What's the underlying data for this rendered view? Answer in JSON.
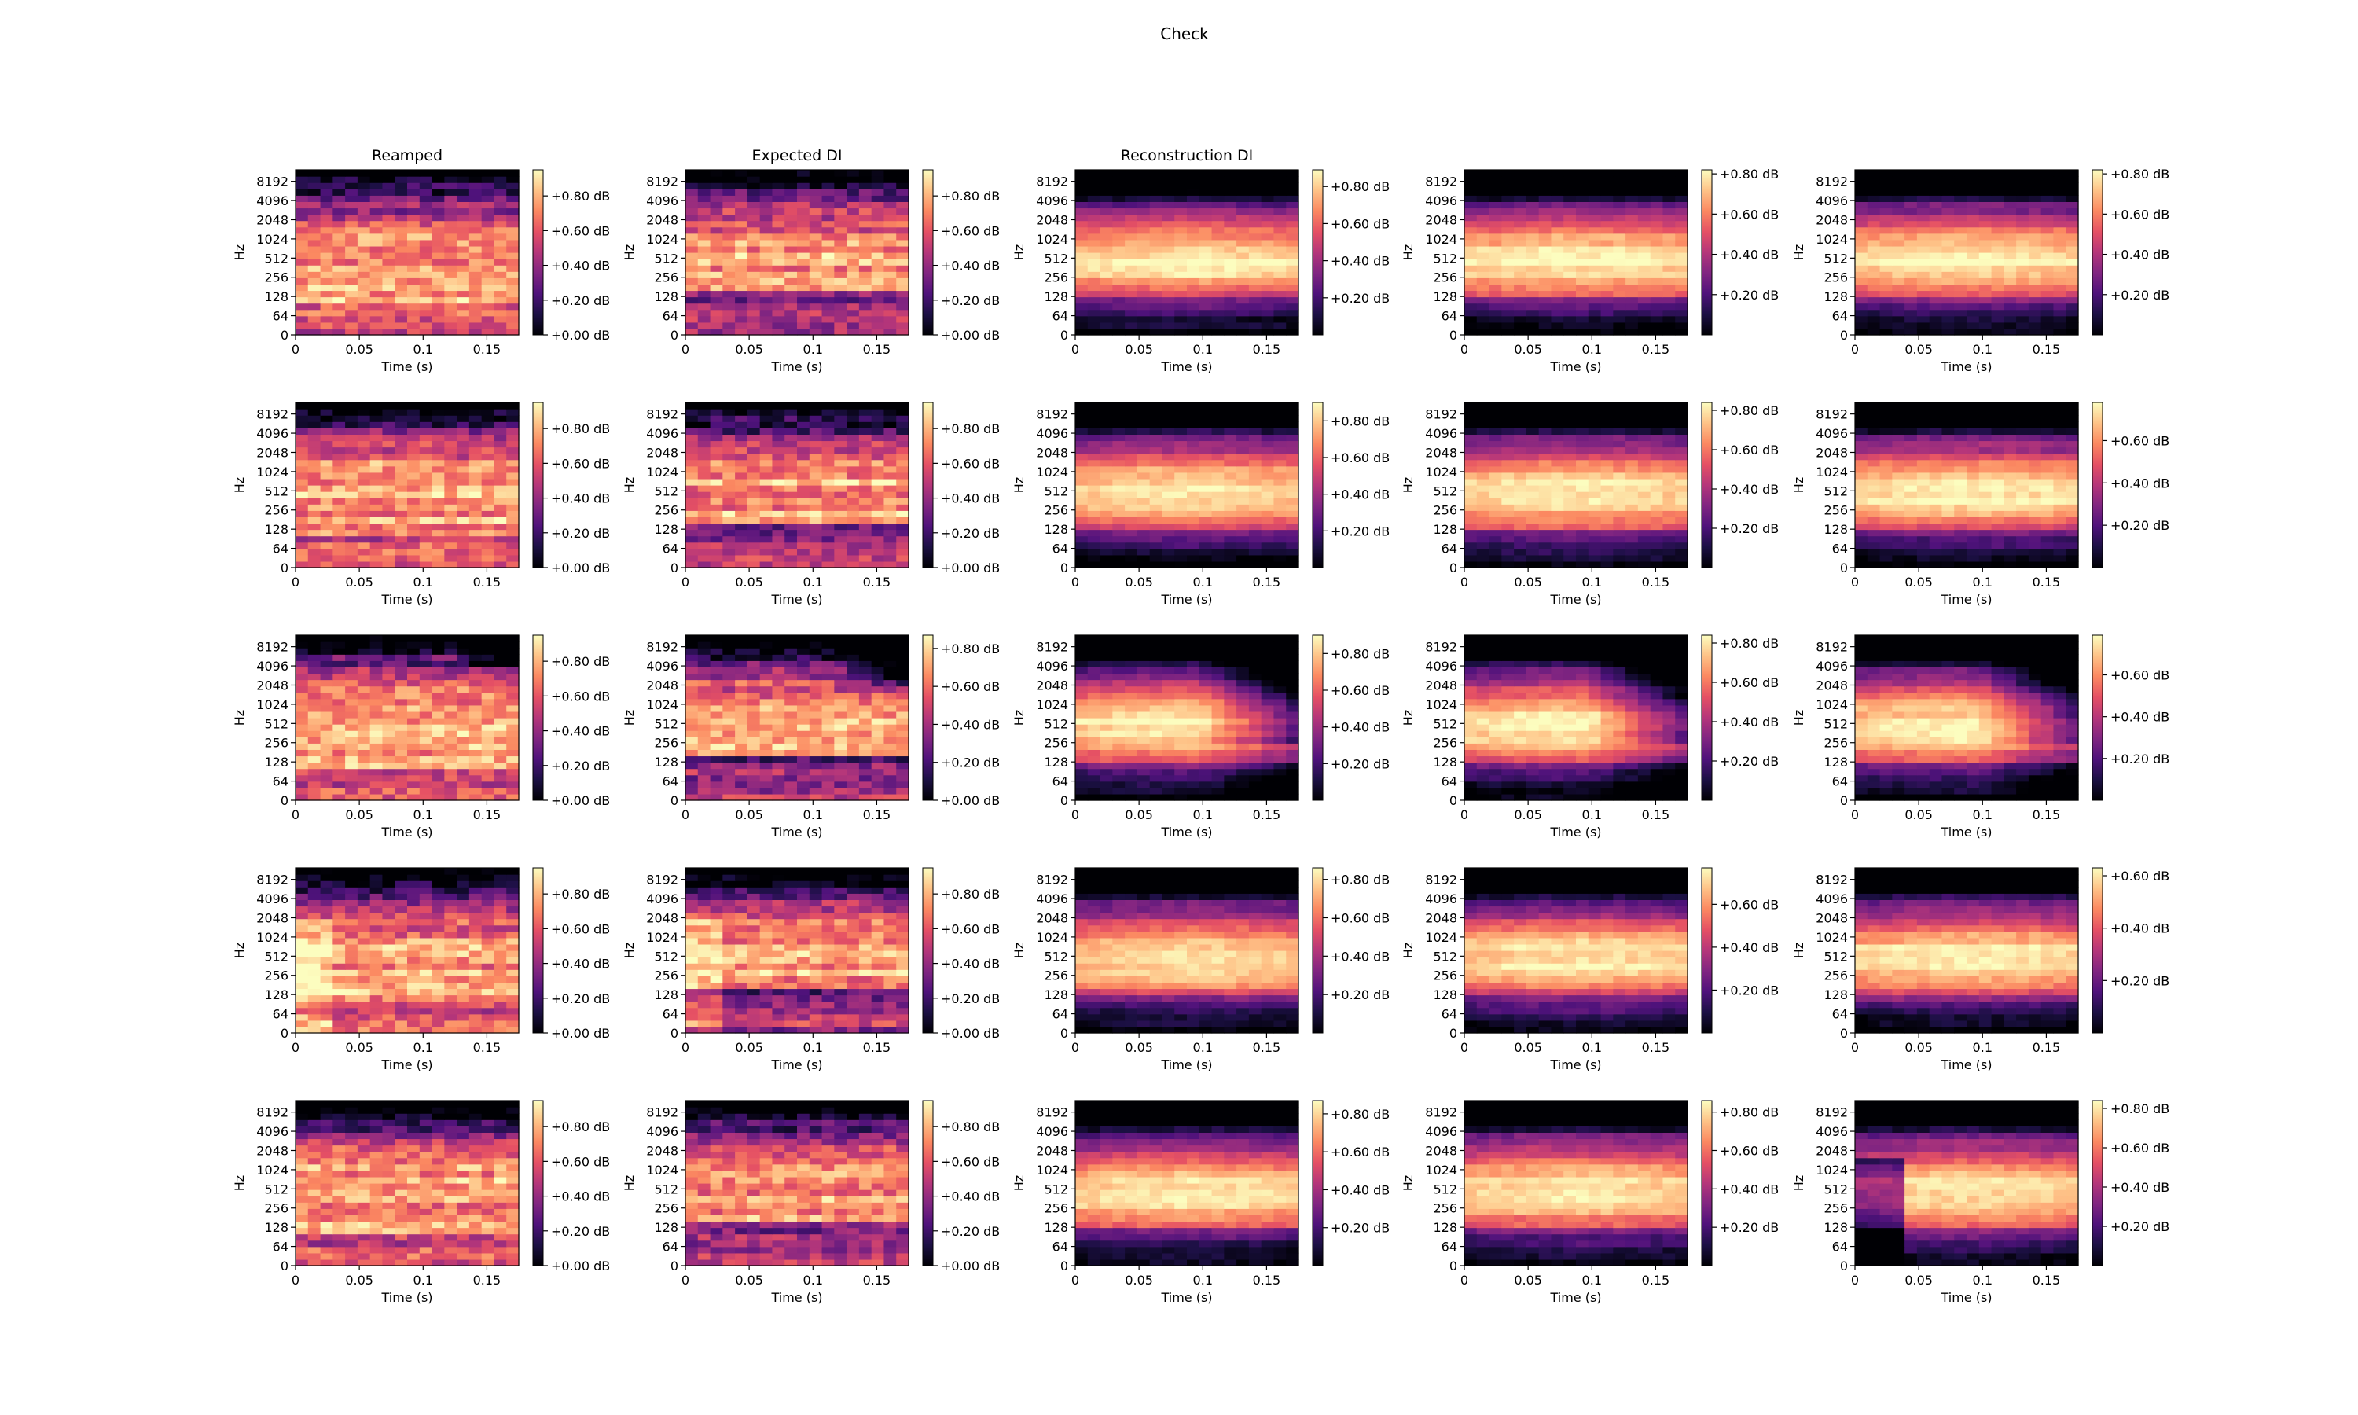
{
  "figure": {
    "suptitle": "Check",
    "column_titles": [
      "Reamped",
      "Expected DI",
      "Reconstruction DI",
      "",
      ""
    ]
  },
  "chart_data": {
    "type": "heatmap",
    "description_kind": "spectrogram grid",
    "grid": {
      "rows": 5,
      "cols": 5
    },
    "x": {
      "label": "Time (s)",
      "ticks": [
        0,
        0.05,
        0.1,
        0.15
      ],
      "tick_labels": [
        "0",
        "0.05",
        "0.1",
        "0.15"
      ],
      "range": [
        0,
        0.175
      ],
      "frames": 18
    },
    "y": {
      "label": "Hz",
      "scale": "log2",
      "ticks": [
        0,
        64,
        128,
        256,
        512,
        1024,
        2048,
        4096,
        8192
      ],
      "tick_labels": [
        "0",
        "64",
        "128",
        "256",
        "512",
        "1024",
        "2048",
        "4096",
        "8192"
      ],
      "bins": 26
    },
    "colormap": "magma",
    "colormap_stops": [
      "#000004",
      "#1c1044",
      "#4f127b",
      "#812581",
      "#b5367a",
      "#e55064",
      "#fb8861",
      "#fec287",
      "#fcfdbf"
    ],
    "colorbars": [
      [
        {
          "ticks": [
            0,
            0.2,
            0.4,
            0.6,
            0.8
          ],
          "vmax": 0.95,
          "labels": [
            "+0.00 dB",
            "+0.20 dB",
            "+0.40 dB",
            "+0.60 dB",
            "+0.80 dB"
          ]
        },
        {
          "ticks": [
            0,
            0.2,
            0.4,
            0.6,
            0.8
          ],
          "vmax": 0.95,
          "labels": [
            "+0.00 dB",
            "+0.20 dB",
            "+0.40 dB",
            "+0.60 dB",
            "+0.80 dB"
          ]
        },
        {
          "ticks": [
            0.2,
            0.4,
            0.6,
            0.8
          ],
          "vmax": 0.89,
          "labels": [
            "+0.20 dB",
            "+0.40 dB",
            "+0.60 dB",
            "+0.80 dB"
          ]
        },
        {
          "ticks": [
            0.2,
            0.4,
            0.6,
            0.8
          ],
          "vmax": 0.82,
          "labels": [
            "+0.20 dB",
            "+0.40 dB",
            "+0.60 dB",
            "+0.80 dB"
          ]
        },
        {
          "ticks": [
            0.2,
            0.4,
            0.6,
            0.8
          ],
          "vmax": 0.82,
          "labels": [
            "+0.20 dB",
            "+0.40 dB",
            "+0.60 dB",
            "+0.80 dB"
          ]
        }
      ],
      [
        {
          "ticks": [
            0,
            0.2,
            0.4,
            0.6,
            0.8
          ],
          "vmax": 0.95,
          "labels": [
            "+0.00 dB",
            "+0.20 dB",
            "+0.40 dB",
            "+0.60 dB",
            "+0.80 dB"
          ]
        },
        {
          "ticks": [
            0,
            0.2,
            0.4,
            0.6,
            0.8
          ],
          "vmax": 0.95,
          "labels": [
            "+0.00 dB",
            "+0.20 dB",
            "+0.40 dB",
            "+0.60 dB",
            "+0.80 dB"
          ]
        },
        {
          "ticks": [
            0.2,
            0.4,
            0.6,
            0.8
          ],
          "vmax": 0.9,
          "labels": [
            "+0.20 dB",
            "+0.40 dB",
            "+0.60 dB",
            "+0.80 dB"
          ]
        },
        {
          "ticks": [
            0.2,
            0.4,
            0.6,
            0.8
          ],
          "vmax": 0.84,
          "labels": [
            "+0.20 dB",
            "+0.40 dB",
            "+0.60 dB",
            "+0.80 dB"
          ]
        },
        {
          "ticks": [
            0.2,
            0.4,
            0.6
          ],
          "vmax": 0.78,
          "labels": [
            "+0.20 dB",
            "+0.40 dB",
            "+0.60 dB"
          ]
        }
      ],
      [
        {
          "ticks": [
            0,
            0.2,
            0.4,
            0.6,
            0.8
          ],
          "vmax": 0.95,
          "labels": [
            "+0.00 dB",
            "+0.20 dB",
            "+0.40 dB",
            "+0.60 dB",
            "+0.80 dB"
          ]
        },
        {
          "ticks": [
            0,
            0.2,
            0.4,
            0.6,
            0.8
          ],
          "vmax": 0.87,
          "labels": [
            "+0.00 dB",
            "+0.20 dB",
            "+0.40 dB",
            "+0.60 dB",
            "+0.80 dB"
          ]
        },
        {
          "ticks": [
            0.2,
            0.4,
            0.6,
            0.8
          ],
          "vmax": 0.9,
          "labels": [
            "+0.20 dB",
            "+0.40 dB",
            "+0.60 dB",
            "+0.80 dB"
          ]
        },
        {
          "ticks": [
            0.2,
            0.4,
            0.6,
            0.8
          ],
          "vmax": 0.84,
          "labels": [
            "+0.20 dB",
            "+0.40 dB",
            "+0.60 dB",
            "+0.80 dB"
          ]
        },
        {
          "ticks": [
            0.2,
            0.4,
            0.6
          ],
          "vmax": 0.79,
          "labels": [
            "+0.20 dB",
            "+0.40 dB",
            "+0.60 dB"
          ]
        }
      ],
      [
        {
          "ticks": [
            0,
            0.2,
            0.4,
            0.6,
            0.8
          ],
          "vmax": 0.95,
          "labels": [
            "+0.00 dB",
            "+0.20 dB",
            "+0.40 dB",
            "+0.60 dB",
            "+0.80 dB"
          ]
        },
        {
          "ticks": [
            0,
            0.2,
            0.4,
            0.6,
            0.8
          ],
          "vmax": 0.95,
          "labels": [
            "+0.00 dB",
            "+0.20 dB",
            "+0.40 dB",
            "+0.60 dB",
            "+0.80 dB"
          ]
        },
        {
          "ticks": [
            0.2,
            0.4,
            0.6,
            0.8
          ],
          "vmax": 0.86,
          "labels": [
            "+0.20 dB",
            "+0.40 dB",
            "+0.60 dB",
            "+0.80 dB"
          ]
        },
        {
          "ticks": [
            0.2,
            0.4,
            0.6
          ],
          "vmax": 0.77,
          "labels": [
            "+0.20 dB",
            "+0.40 dB",
            "+0.60 dB"
          ]
        },
        {
          "ticks": [
            0.2,
            0.4,
            0.6
          ],
          "vmax": 0.63,
          "labels": [
            "+0.20 dB",
            "+0.40 dB",
            "+0.60 dB"
          ]
        }
      ],
      [
        {
          "ticks": [
            0,
            0.2,
            0.4,
            0.6,
            0.8
          ],
          "vmax": 0.95,
          "labels": [
            "+0.00 dB",
            "+0.20 dB",
            "+0.40 dB",
            "+0.60 dB",
            "+0.80 dB"
          ]
        },
        {
          "ticks": [
            0,
            0.2,
            0.4,
            0.6,
            0.8
          ],
          "vmax": 0.95,
          "labels": [
            "+0.00 dB",
            "+0.20 dB",
            "+0.40 dB",
            "+0.60 dB",
            "+0.80 dB"
          ]
        },
        {
          "ticks": [
            0.2,
            0.4,
            0.6,
            0.8
          ],
          "vmax": 0.87,
          "labels": [
            "+0.20 dB",
            "+0.40 dB",
            "+0.60 dB",
            "+0.80 dB"
          ]
        },
        {
          "ticks": [
            0.2,
            0.4,
            0.6,
            0.8
          ],
          "vmax": 0.86,
          "labels": [
            "+0.20 dB",
            "+0.40 dB",
            "+0.60 dB",
            "+0.80 dB"
          ]
        },
        {
          "ticks": [
            0.2,
            0.4,
            0.6,
            0.8
          ],
          "vmax": 0.84,
          "labels": [
            "+0.20 dB",
            "+0.40 dB",
            "+0.60 dB",
            "+0.80 dB"
          ]
        }
      ]
    ],
    "notes": "Cell intensities are procedurally approximated (spectral energy peaks near 256–512 Hz, dark above ~4096 Hz); exact per-bin values are not readable from the image."
  }
}
